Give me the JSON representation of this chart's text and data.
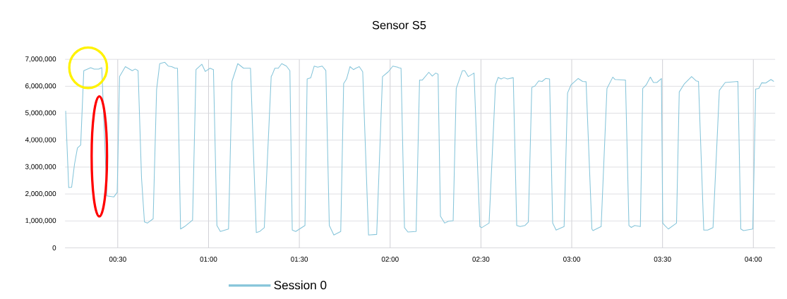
{
  "chart_data": {
    "type": "line",
    "title": "Sensor S5",
    "x": [
      0.213,
      0.23,
      0.246,
      0.262,
      0.278,
      0.296,
      0.313,
      0.351,
      0.37,
      0.395,
      0.412,
      0.44,
      0.478,
      0.497,
      0.51,
      0.542,
      0.58,
      0.596,
      0.612,
      0.631,
      0.647,
      0.663,
      0.695,
      0.714,
      0.731,
      0.759,
      0.778,
      0.797,
      0.816,
      0.829,
      0.846,
      0.868,
      0.912,
      0.931,
      0.963,
      0.982,
      1.008,
      1.027,
      1.046,
      1.065,
      1.11,
      1.129,
      1.161,
      1.193,
      1.231,
      1.263,
      1.282,
      1.307,
      1.345,
      1.352,
      1.365,
      1.384,
      1.403,
      1.429,
      1.448,
      1.461,
      1.48,
      1.531,
      1.543,
      1.563,
      1.582,
      1.601,
      1.626,
      1.646,
      1.665,
      1.69,
      1.728,
      1.744,
      1.76,
      1.779,
      1.798,
      1.811,
      1.83,
      1.849,
      1.881,
      1.926,
      1.958,
      1.99,
      2.015,
      2.041,
      2.047,
      2.06,
      2.079,
      2.098,
      2.143,
      2.162,
      2.177,
      2.213,
      2.232,
      2.251,
      2.264,
      2.277,
      2.3,
      2.321,
      2.347,
      2.364,
      2.398,
      2.411,
      2.43,
      2.462,
      2.494,
      2.504,
      2.545,
      2.58,
      2.595,
      2.611,
      2.627,
      2.646,
      2.678,
      2.697,
      2.716,
      2.742,
      2.761,
      2.78,
      2.797,
      2.818,
      2.837,
      2.856,
      2.878,
      2.895,
      2.914,
      2.958,
      2.977,
      2.996,
      3.035,
      3.06,
      3.079,
      3.111,
      3.117,
      3.162,
      3.194,
      3.226,
      3.239,
      3.296,
      3.315,
      3.328,
      3.347,
      3.378,
      3.391,
      3.41,
      3.433,
      3.45,
      3.469,
      3.494,
      3.501,
      3.513,
      3.532,
      3.577,
      3.592,
      3.621,
      3.66,
      3.685,
      3.698,
      3.727,
      3.749,
      3.778,
      3.813,
      3.845,
      3.915,
      3.931,
      3.946,
      3.997,
      4.013,
      4.03,
      4.046,
      4.068,
      4.097,
      4.113
    ],
    "series": [
      {
        "name": "Session 0",
        "color": "#86c5da",
        "values": [
          5090000,
          2240000,
          2250000,
          3110000,
          3710000,
          3820000,
          6580000,
          6690000,
          6640000,
          6640000,
          6690000,
          1930000,
          1890000,
          2060000,
          6360000,
          6730000,
          6580000,
          6640000,
          6580000,
          2590000,
          960000,
          920000,
          1080000,
          5880000,
          6840000,
          6890000,
          6750000,
          6730000,
          6670000,
          6670000,
          700000,
          790000,
          1030000,
          6620000,
          6820000,
          6550000,
          6670000,
          6620000,
          830000,
          610000,
          700000,
          6180000,
          6840000,
          6670000,
          6670000,
          570000,
          610000,
          750000,
          6360000,
          6450000,
          6670000,
          6670000,
          6840000,
          6750000,
          6580000,
          660000,
          610000,
          830000,
          6270000,
          6320000,
          6750000,
          6710000,
          6750000,
          6580000,
          830000,
          480000,
          610000,
          6100000,
          6270000,
          6730000,
          6620000,
          6670000,
          6730000,
          6540000,
          480000,
          500000,
          6360000,
          6540000,
          6750000,
          6710000,
          6690000,
          6670000,
          750000,
          590000,
          610000,
          6230000,
          6230000,
          6520000,
          6380000,
          6490000,
          6450000,
          1180000,
          920000,
          990000,
          1010000,
          5920000,
          6580000,
          6580000,
          6360000,
          6490000,
          790000,
          750000,
          920000,
          6050000,
          6330000,
          6270000,
          6320000,
          6270000,
          6320000,
          830000,
          790000,
          830000,
          960000,
          5960000,
          6010000,
          6200000,
          6180000,
          6290000,
          6270000,
          920000,
          660000,
          790000,
          5750000,
          6050000,
          6290000,
          6180000,
          6170000,
          700000,
          640000,
          790000,
          5920000,
          6340000,
          6250000,
          6230000,
          830000,
          760000,
          830000,
          790000,
          5920000,
          6050000,
          6340000,
          6140000,
          6140000,
          6290000,
          920000,
          830000,
          700000,
          920000,
          5790000,
          6100000,
          6360000,
          6200000,
          6180000,
          660000,
          660000,
          750000,
          5850000,
          6140000,
          6180000,
          700000,
          640000,
          700000,
          5900000,
          5920000,
          6130000,
          6120000,
          6250000,
          6180000
        ]
      }
    ],
    "xlim": [
      0.21,
      4.12
    ],
    "ylim": [
      0,
      7000000
    ],
    "xticks": [
      {
        "value": 0.5,
        "label": "00:30"
      },
      {
        "value": 1.0,
        "label": "01:00"
      },
      {
        "value": 1.5,
        "label": "01:30"
      },
      {
        "value": 2.0,
        "label": "02:00"
      },
      {
        "value": 2.5,
        "label": "02:30"
      },
      {
        "value": 3.0,
        "label": "03:00"
      },
      {
        "value": 3.5,
        "label": "03:30"
      },
      {
        "value": 4.0,
        "label": "04:00"
      }
    ],
    "yticks": [
      {
        "value": 0,
        "label": "0"
      },
      {
        "value": 1000000,
        "label": "1,000,000"
      },
      {
        "value": 2000000,
        "label": "2,000,000"
      },
      {
        "value": 3000000,
        "label": "3,000,000"
      },
      {
        "value": 4000000,
        "label": "4,000,000"
      },
      {
        "value": 5000000,
        "label": "5,000,000"
      },
      {
        "value": 6000000,
        "label": "6,000,000"
      },
      {
        "value": 7000000,
        "label": "7,000,000"
      }
    ],
    "grid": true,
    "legend": "bottom"
  }
}
